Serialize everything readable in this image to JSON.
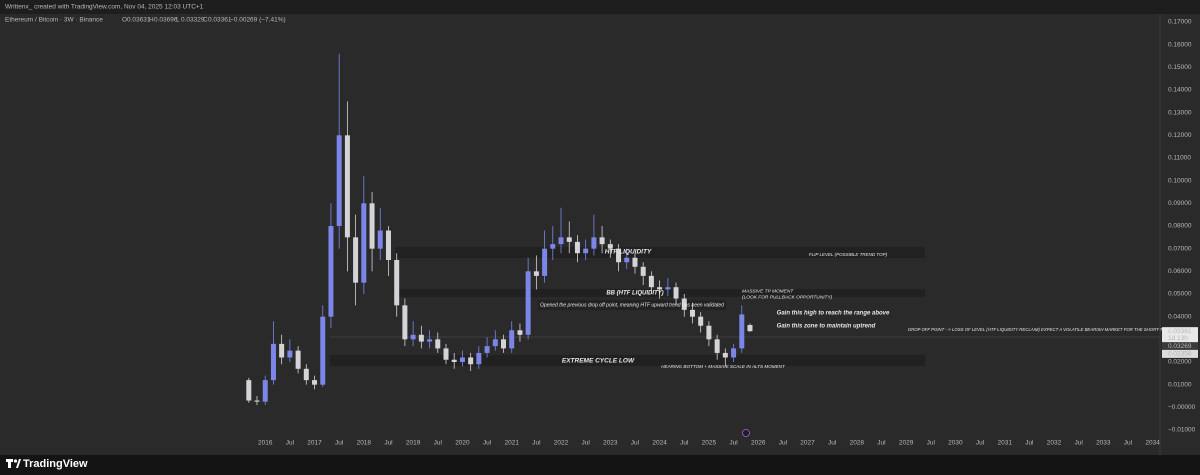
{
  "chart_data": {
    "type": "candlestick",
    "header": "Writtenx_ created with TradingView.com, Nov 04, 2025 12:03 UTC+1",
    "title": "Ethereum / Bitcoin · 3W · Binance",
    "ohlc_labels": [
      "O",
      "H",
      "L",
      "C"
    ],
    "change": "−0.00269 (−7.41%)",
    "countdown": "1d 13h",
    "brand": "TradingView",
    "up_color": "#7c86e8",
    "down_color": "#d4d4d8",
    "x": [
      2015.667,
      2015.833,
      2016.0,
      2016.167,
      2016.333,
      2016.5,
      2016.667,
      2016.833,
      2017.0,
      2017.167,
      2017.333,
      2017.5,
      2017.667,
      2017.833,
      2018.0,
      2018.167,
      2018.333,
      2018.5,
      2018.667,
      2018.833,
      2019.0,
      2019.167,
      2019.333,
      2019.5,
      2019.667,
      2019.833,
      2020.0,
      2020.167,
      2020.333,
      2020.5,
      2020.667,
      2020.833,
      2021.0,
      2021.167,
      2021.333,
      2021.5,
      2021.667,
      2021.833,
      2022.0,
      2022.167,
      2022.333,
      2022.5,
      2022.667,
      2022.833,
      2023.0,
      2023.167,
      2023.333,
      2023.5,
      2023.667,
      2023.833,
      2024.0,
      2024.167,
      2024.333,
      2024.5,
      2024.667,
      2024.833,
      2025.0,
      2025.167,
      2025.333,
      2025.5,
      2025.667,
      2025.833
    ],
    "open": [
      0.012,
      0.003,
      0.0025,
      0.012,
      0.028,
      0.022,
      0.025,
      0.017,
      0.012,
      0.01,
      0.04,
      0.08,
      0.12,
      0.075,
      0.055,
      0.09,
      0.07,
      0.078,
      0.065,
      0.045,
      0.03,
      0.032,
      0.029,
      0.03,
      0.026,
      0.021,
      0.02,
      0.022,
      0.019,
      0.024,
      0.027,
      0.03,
      0.026,
      0.034,
      0.032,
      0.06,
      0.058,
      0.07,
      0.072,
      0.075,
      0.073,
      0.068,
      0.07,
      0.075,
      0.072,
      0.07,
      0.064,
      0.066,
      0.062,
      0.058,
      0.053,
      0.052,
      0.053,
      0.048,
      0.043,
      0.04,
      0.036,
      0.03,
      0.024,
      0.022,
      0.026,
      0.03631
    ],
    "high": [
      0.013,
      0.005,
      0.014,
      0.038,
      0.032,
      0.03,
      0.027,
      0.019,
      0.014,
      0.045,
      0.09,
      0.156,
      0.135,
      0.085,
      0.102,
      0.095,
      0.088,
      0.08,
      0.068,
      0.048,
      0.038,
      0.036,
      0.034,
      0.033,
      0.028,
      0.024,
      0.025,
      0.024,
      0.027,
      0.031,
      0.034,
      0.032,
      0.038,
      0.037,
      0.066,
      0.067,
      0.078,
      0.08,
      0.088,
      0.082,
      0.076,
      0.074,
      0.085,
      0.08,
      0.074,
      0.072,
      0.07,
      0.068,
      0.064,
      0.06,
      0.056,
      0.057,
      0.055,
      0.05,
      0.046,
      0.042,
      0.038,
      0.032,
      0.026,
      0.028,
      0.045,
      0.03696
    ],
    "low": [
      0.002,
      0.001,
      0.001,
      0.01,
      0.019,
      0.02,
      0.015,
      0.01,
      0.008,
      0.009,
      0.035,
      0.07,
      0.06,
      0.045,
      0.05,
      0.06,
      0.065,
      0.058,
      0.04,
      0.027,
      0.027,
      0.026,
      0.026,
      0.024,
      0.019,
      0.017,
      0.018,
      0.016,
      0.017,
      0.022,
      0.025,
      0.024,
      0.024,
      0.029,
      0.03,
      0.052,
      0.055,
      0.065,
      0.068,
      0.068,
      0.064,
      0.065,
      0.067,
      0.068,
      0.066,
      0.06,
      0.061,
      0.059,
      0.054,
      0.05,
      0.048,
      0.049,
      0.045,
      0.04,
      0.037,
      0.033,
      0.027,
      0.021,
      0.018,
      0.02,
      0.024,
      0.03329
    ],
    "close": [
      0.003,
      0.0025,
      0.012,
      0.028,
      0.022,
      0.025,
      0.017,
      0.012,
      0.01,
      0.04,
      0.08,
      0.12,
      0.075,
      0.055,
      0.09,
      0.07,
      0.078,
      0.065,
      0.045,
      0.03,
      0.032,
      0.029,
      0.03,
      0.026,
      0.021,
      0.02,
      0.022,
      0.019,
      0.024,
      0.027,
      0.03,
      0.026,
      0.034,
      0.032,
      0.06,
      0.058,
      0.07,
      0.072,
      0.075,
      0.073,
      0.068,
      0.07,
      0.075,
      0.072,
      0.07,
      0.064,
      0.066,
      0.062,
      0.058,
      0.053,
      0.052,
      0.053,
      0.048,
      0.043,
      0.04,
      0.036,
      0.03,
      0.024,
      0.022,
      0.026,
      0.041,
      0.03361
    ],
    "price_markers": [
      0.03269,
      0.02358
    ],
    "annotations": [
      "HTF LIQUIDITY",
      "FLIP LEVEL (POSSIBLE TREND TOP)",
      "BB (HTF LIQUIDITY)",
      "MASSIVE TP MOMENT",
      "(LOOK FOR PULLBACK OPPORTUNITY)",
      "Opened the previous drop off point, meaning HTF upward trend has been validated",
      "Gain this high to reach the range above",
      "Gain this zone to maintain uptrend",
      "DROP OFF POINT --> LOSS OF LEVEL (HTF LIQUIDITY RECLAIM) EXPECT A VOLATILE BEARISH MARKET FOR THE SHORT-TERM",
      "EXTREME CYCLE LOW",
      "HEARING BOTTOM + MASSIVE SCALE IN ALTS MOMENT"
    ],
    "xlim": [
      2010.62,
      2034.15
    ],
    "ylim": [
      -0.01,
      0.17
    ],
    "xticks": [
      2016,
      {
        "value": 2016.5,
        "label": "Jul"
      },
      2017,
      {
        "value": 2017.5,
        "label": "Jul"
      },
      2018,
      {
        "value": 2018.5,
        "label": "Jul"
      },
      2019,
      {
        "value": 2019.5,
        "label": "Jul"
      },
      2020,
      {
        "value": 2020.5,
        "label": "Jul"
      },
      2021,
      {
        "value": 2021.5,
        "label": "Jul"
      },
      2022,
      {
        "value": 2022.5,
        "label": "Jul"
      },
      2023,
      {
        "value": 2023.5,
        "label": "Jul"
      },
      2024,
      {
        "value": 2024.5,
        "label": "Jul"
      },
      2025,
      {
        "value": 2025.5,
        "label": "Jul"
      },
      2026,
      {
        "value": 2026.5,
        "label": "Jul"
      },
      2027,
      {
        "value": 2027.5,
        "label": "Jul"
      },
      2028,
      {
        "value": 2028.5,
        "label": "Jul"
      },
      2029,
      {
        "value": 2029.5,
        "label": "Jul"
      },
      2030,
      {
        "value": 2030.5,
        "label": "Jul"
      },
      2031,
      {
        "value": 2031.5,
        "label": "Jul"
      },
      2032,
      {
        "value": 2032.5,
        "label": "Jul"
      },
      2033,
      {
        "value": 2033.5,
        "label": "Jul"
      },
      2034
    ],
    "yticks": [
      {
        "value": 0.17,
        "label": "0.17000"
      },
      {
        "value": 0.16,
        "label": "0.16000"
      },
      {
        "value": 0.15,
        "label": "0.15000"
      },
      {
        "value": 0.14,
        "label": "0.14000"
      },
      {
        "value": 0.13,
        "label": "0.13000"
      },
      {
        "value": 0.12,
        "label": "0.12000"
      },
      {
        "value": 0.11,
        "label": "0.11000"
      },
      {
        "value": 0.1,
        "label": "0.10000"
      },
      {
        "value": 0.09,
        "label": "0.09000"
      },
      {
        "value": 0.08,
        "label": "0.08000"
      },
      {
        "value": 0.07,
        "label": "0.07000"
      },
      {
        "value": 0.06,
        "label": "0.06000"
      },
      {
        "value": 0.05,
        "label": "0.05000"
      },
      {
        "value": 0.04,
        "label": "0.04000"
      },
      {
        "value": 0.02,
        "label": "0.02000"
      },
      {
        "value": 0.01,
        "label": "0.01000"
      },
      {
        "value": 0,
        "label": "−0.00000"
      },
      {
        "value": -0.01,
        "label": "−0.01000"
      }
    ],
    "grid": false
  }
}
